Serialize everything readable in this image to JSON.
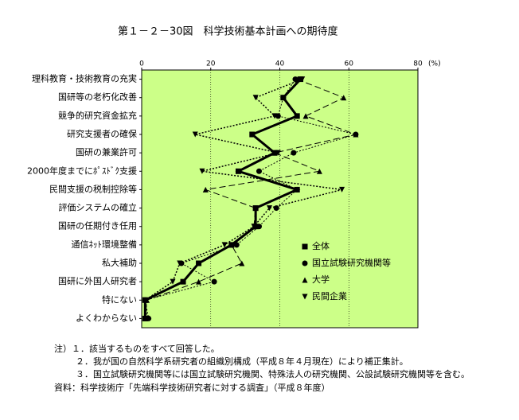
{
  "chart_data": {
    "type": "line",
    "title": "第１－２－30図　科学技術基本計画への期待度",
    "x_unit": "(%)",
    "categories": [
      "理科教育・技術教育の充実",
      "国研等の老朽化改善",
      "競争的研究資金拡充",
      "研究支援者の確保",
      "国研の兼業許可",
      "2000年度までにﾎﾟｽﾄﾞｸ支援",
      "民間支援の税制控除等",
      "評価システムの確立",
      "国研の任期付き任用",
      "通信ﾈｯﾄ環境整備",
      "私大補助",
      "国研に外国人研究者",
      "特にない",
      "よくわからない"
    ],
    "series": [
      {
        "name": "全体",
        "color": "#000000",
        "marker": "square",
        "line_style": "solid",
        "width": 3,
        "values": [
          46,
          41,
          45,
          32,
          38.5,
          28,
          45,
          33,
          33,
          26,
          16.5,
          12,
          1,
          1
        ]
      },
      {
        "name": "国立試験研究機関等",
        "color": "#000000",
        "marker": "circle",
        "line_style": "dotted",
        "width": 1,
        "values": [
          44.5,
          41,
          39.5,
          62,
          44,
          34,
          45,
          39,
          34,
          27.5,
          11.5,
          21,
          1,
          2
        ]
      },
      {
        "name": "大学",
        "color": "#000000",
        "marker": "triangle-up",
        "line_style": "dashed",
        "width": 1,
        "values": [
          45,
          58.5,
          47.5,
          62,
          38.5,
          51.5,
          18.5,
          33,
          32.5,
          26,
          29,
          16.5,
          1.5,
          1
        ]
      },
      {
        "name": "民間企業",
        "color": "#000000",
        "marker": "triangle-down",
        "line_style": "dotted",
        "width": 1.5,
        "values": [
          46.5,
          33,
          38.5,
          15.5,
          39.5,
          17.5,
          58,
          37,
          32.5,
          24,
          11,
          9,
          1,
          1.5
        ]
      }
    ],
    "xlim": [
      0,
      80
    ],
    "xticks": [
      0,
      20,
      40,
      60,
      80
    ],
    "grid": true,
    "background": "#ccff88",
    "notes": [
      "注）１．該当するものをすべて回答した。",
      "２．我が国の自然科学系研究者の組織別構成（平成８年４月現在）により補正集計。",
      "３．国立試験研究機関等には国立試験研究機関、特殊法人の研究機関、公設試験研究機関等を含む。",
      "資料：科学技術庁「先端科学技術研究者に対する調査」（平成８年度）"
    ]
  }
}
